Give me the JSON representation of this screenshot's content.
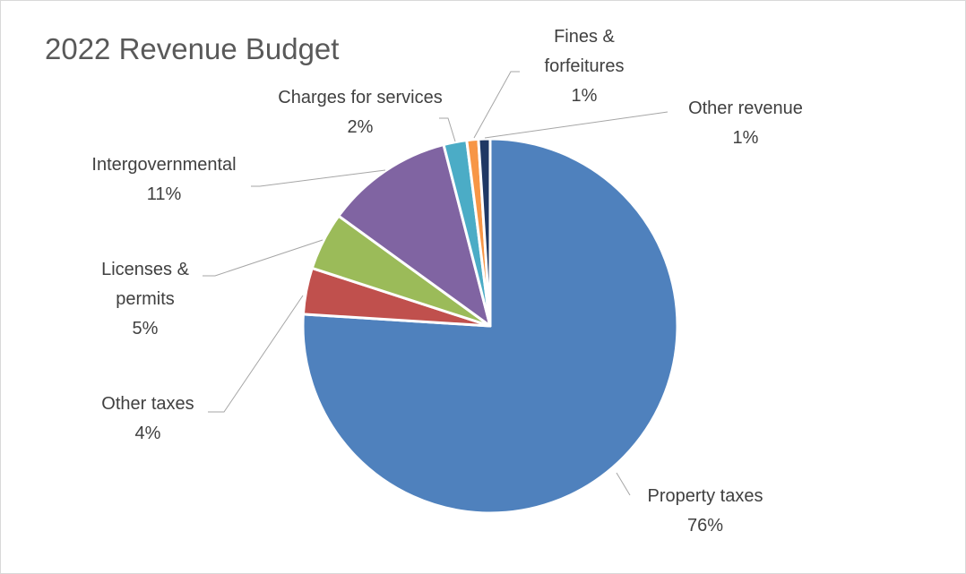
{
  "chart_data": {
    "type": "pie",
    "title": "2022 Revenue Budget",
    "categories": [
      "Property taxes",
      "Other taxes",
      "Licenses & permits",
      "Intergovernmental",
      "Charges for services",
      "Fines & forfeitures",
      "Other revenue"
    ],
    "values": [
      76,
      4,
      5,
      11,
      2,
      1,
      1
    ],
    "value_labels": [
      "76%",
      "4%",
      "5%",
      "11%",
      "2%",
      "1%",
      "1%"
    ],
    "colors": [
      "#4f81bd",
      "#c0504d",
      "#9bbb59",
      "#8064a2",
      "#4bacc6",
      "#f79646",
      "#1f3864"
    ]
  }
}
